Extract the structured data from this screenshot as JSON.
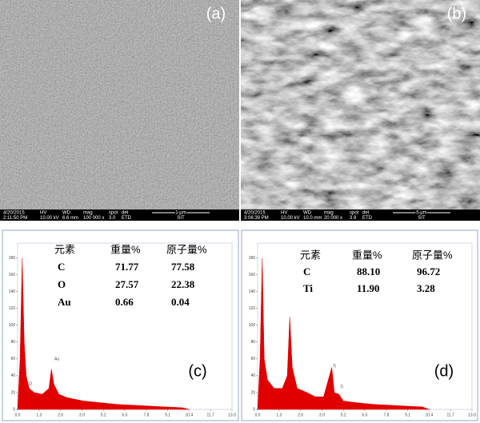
{
  "sem_headers": {
    "hv": "HV",
    "wd": "WD",
    "mag": "mag",
    "spot": "spot",
    "det": "det"
  },
  "sem": [
    {
      "label": "(a)",
      "date": "4/20/2015",
      "time": "2:11:50 PM",
      "hv": "10.00 kV",
      "wd": "6.6 mm",
      "mag": "100 000 x",
      "spot": "3.0",
      "det": "ETD",
      "scale": "1 μm",
      "org": "SIT"
    },
    {
      "label": "(b)",
      "date": "4/20/2015",
      "time": "3:06:39 PM",
      "hv": "10.00 kV",
      "wd": "10.0 mm",
      "mag": "20 000 x",
      "spot": "3.9",
      "det": "ETD",
      "scale": "5 μm",
      "org": "SIT"
    }
  ],
  "eds": [
    {
      "label": "(c)",
      "table": {
        "header": [
          "元素",
          "重量%",
          "原子量%"
        ],
        "rows": [
          [
            "C",
            "71.77",
            "77.58"
          ],
          [
            "O",
            "27.57",
            "22.38"
          ],
          [
            "Au",
            "0.66",
            "0.04"
          ]
        ]
      },
      "peak_labels": [
        "O",
        "Au"
      ],
      "xlim": [
        0,
        13
      ],
      "ylim": [
        0,
        190
      ],
      "xticks": [
        {
          "value": 0,
          "label": "0.0"
        },
        1.3,
        2.6,
        3.9,
        5.2,
        6.5,
        7.8,
        9.1,
        10.4,
        11.7,
        {
          "value": 13,
          "label": "13.0"
        }
      ],
      "yticks": [
        0,
        20,
        40,
        60,
        80,
        100,
        120,
        140,
        160,
        180
      ],
      "spectrum": {
        "color": "#e00000",
        "x": [
          0,
          0.15,
          0.28,
          0.4,
          0.52,
          0.7,
          1.0,
          1.5,
          1.9,
          2.05,
          2.2,
          2.5,
          3,
          3.5,
          4,
          5,
          6,
          7,
          8,
          9,
          10,
          10.4
        ],
        "counts": [
          0,
          60,
          180,
          80,
          40,
          25,
          20,
          18,
          25,
          48,
          30,
          18,
          14,
          12,
          10,
          8,
          6,
          5,
          4,
          3,
          2,
          0
        ]
      }
    },
    {
      "label": "(d)",
      "table": {
        "header": [
          "元素",
          "重量%",
          "原子量%"
        ],
        "rows": [
          [
            "C",
            "88.10",
            "96.72"
          ],
          [
            "Ti",
            "11.90",
            "3.28"
          ]
        ]
      },
      "peak_labels": [
        "Ti",
        "Ti"
      ],
      "xlim": [
        0,
        13
      ],
      "ylim": [
        0,
        190
      ],
      "xticks": [
        {
          "value": 0,
          "label": "0.0"
        },
        1.3,
        2.6,
        3.9,
        5.2,
        6.5,
        7.8,
        9.1,
        10.4,
        11.7,
        {
          "value": 13,
          "label": "13.0"
        }
      ],
      "yticks": [
        0,
        20,
        40,
        60,
        80,
        100,
        120,
        140,
        160,
        180
      ],
      "spectrum": {
        "color": "#e00000",
        "x": [
          0,
          0.15,
          0.28,
          0.4,
          0.6,
          1,
          1.5,
          1.8,
          1.95,
          2.1,
          2.4,
          3,
          3.5,
          4,
          4.5,
          4.65,
          4.93,
          5.2,
          6,
          7,
          8,
          9,
          10,
          10.4
        ],
        "counts": [
          0,
          60,
          180,
          60,
          35,
          25,
          25,
          40,
          110,
          50,
          25,
          20,
          15,
          15,
          50,
          20,
          18,
          10,
          8,
          6,
          5,
          4,
          3,
          0
        ]
      }
    }
  ]
}
